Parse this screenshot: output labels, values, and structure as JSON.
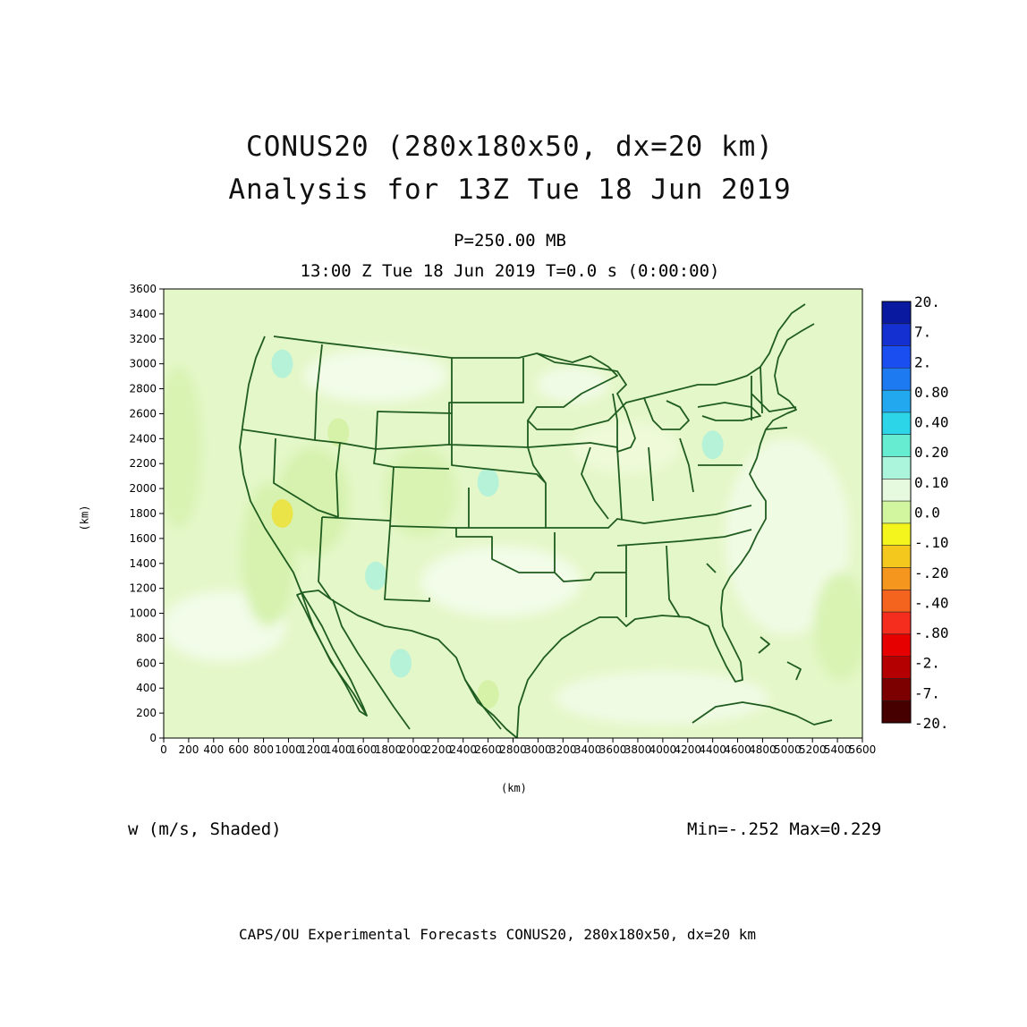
{
  "title": {
    "line1": "CONUS20 (280x180x50, dx=20 km)",
    "line2": "Analysis for 13Z Tue 18 Jun 2019"
  },
  "subtitle": {
    "level": "P=250.00 MB",
    "time": "13:00 Z Tue 18 Jun 2019    T=0.0 s (0:00:00)"
  },
  "variable_label": "w (m/s, Shaded)",
  "minmax_label": "Min=-.252 Max=0.229",
  "credit": "CAPS/OU Experimental Forecasts  CONUS20, 280x180x50, dx=20 km",
  "colors": {
    "background_field": "#e4f7c8",
    "boundary_lines": "#1f5c1f",
    "frame": "#000000"
  },
  "chart_data": {
    "type": "heatmap",
    "xlabel": "(km)",
    "ylabel": "(km)",
    "xlim": [
      0,
      5600
    ],
    "ylim": [
      0,
      3600
    ],
    "x_ticks": [
      0,
      200,
      400,
      600,
      800,
      1000,
      1200,
      1400,
      1600,
      1800,
      2000,
      2200,
      2400,
      2600,
      2800,
      3000,
      3200,
      3400,
      3600,
      3800,
      4000,
      4200,
      4400,
      4600,
      4800,
      5000,
      5200,
      5400,
      5600
    ],
    "y_ticks": [
      0,
      200,
      400,
      600,
      800,
      1000,
      1200,
      1400,
      1600,
      1800,
      2000,
      2200,
      2400,
      2600,
      2800,
      3000,
      3200,
      3400,
      3600
    ],
    "colorbar": {
      "labels": [
        "20.",
        "7.",
        "2.",
        "0.80",
        "0.40",
        "0.20",
        "0.10",
        "0.0",
        "-.10",
        "-.20",
        "-.40",
        "-.80",
        "-2.",
        "-7.",
        "-20."
      ],
      "colors": [
        "#0a1aa0",
        "#1430d0",
        "#1a4ef0",
        "#1e7af0",
        "#22a8ee",
        "#2cd6e8",
        "#66ecd0",
        "#aaf5dc",
        "#e6fae0",
        "#d2f5a0",
        "#f5f51e",
        "#f5c81e",
        "#f5961e",
        "#f5641e",
        "#f52d1e",
        "#e60000",
        "#b40000",
        "#7d0000",
        "#460000"
      ],
      "legend_position": "right"
    },
    "field_min": -0.252,
    "field_max": 0.229,
    "features": [
      {
        "value": 0.15,
        "x": 950,
        "y": 3000
      },
      {
        "value": 0.15,
        "x": 2600,
        "y": 2050
      },
      {
        "value": 0.15,
        "x": 1700,
        "y": 1300
      },
      {
        "value": 0.15,
        "x": 1900,
        "y": 600
      },
      {
        "value": 0.15,
        "x": 4400,
        "y": 2350
      },
      {
        "value": -0.2,
        "x": 950,
        "y": 1800
      },
      {
        "value": -0.12,
        "x": 1400,
        "y": 2450
      },
      {
        "value": -0.12,
        "x": 2600,
        "y": 350
      }
    ]
  }
}
